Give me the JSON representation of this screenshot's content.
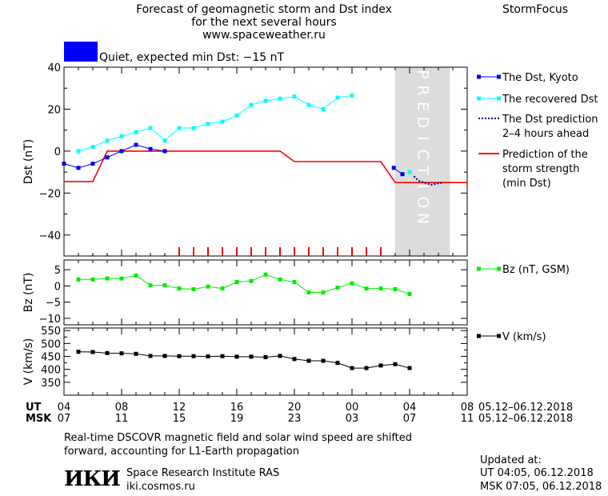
{
  "header": {
    "title_line1": "Forecast of geomagnetic storm and Dst index",
    "title_line2": "for the next several hours",
    "title_line3": "www.spaceweather.ru",
    "brand": "StormFocus"
  },
  "status": {
    "text": "Quiet, expected min Dst: −15 nT",
    "color": "#0000ff"
  },
  "footer": {
    "note_line1": "Real-time DSCOVR magnetic field and solar wind speed are shifted",
    "note_line2": "forward, accounting for L1-Earth propagation",
    "logo": "ИКИ",
    "institute": "Space Research Institute RAS",
    "site": "iki.cosmos.ru",
    "updated_label": "Updated at:",
    "updated_ut": "UT  04:05, 06.12.2018",
    "updated_msk": "MSK 07:05, 06.12.2018"
  },
  "colors": {
    "kyoto": "#0000ee",
    "recovered": "#00ffff",
    "prediction_dotted": "#000090",
    "storm": "#ff0000",
    "bz": "#00ee00",
    "v": "#000000",
    "prediction_band": "#dcdcdc"
  },
  "chart_data": [
    {
      "type": "line",
      "panel": "dst",
      "ylabel": "Dst (nT)",
      "ylim": [
        -50,
        40
      ],
      "yticks": [
        "40",
        "20",
        "0",
        "−20",
        "−40"
      ],
      "ytick_values": [
        40,
        20,
        0,
        -20,
        -40
      ],
      "xlim": [
        4,
        32
      ],
      "prediction_region": [
        27,
        30.8
      ],
      "prediction_label": "PREDICTION",
      "series": [
        {
          "name": "The Dst, Kyoto",
          "x": [
            4,
            5,
            6,
            7,
            8,
            9,
            10,
            11
          ],
          "y": [
            -6,
            -8,
            -6,
            -3,
            0,
            3,
            1,
            0
          ]
        },
        {
          "name": "The recovered Dst",
          "x": [
            5,
            6,
            7,
            8,
            9,
            10,
            11,
            12,
            13,
            14,
            15,
            16,
            17,
            18,
            19,
            20,
            21,
            22,
            23,
            24
          ],
          "y": [
            0,
            2,
            5,
            7,
            9,
            11,
            5,
            11,
            11,
            13,
            14,
            17,
            22,
            24,
            25,
            26,
            22,
            20,
            25.5,
            26.5
          ]
        },
        {
          "name": "The Dst prediction 2–4 hours ahead",
          "x": [
            28.3,
            28.6,
            29.0,
            29.5,
            30.3
          ],
          "y": [
            -12,
            -14,
            -15,
            -16,
            -15
          ]
        },
        {
          "name": "Prediction of the storm strength (min Dst)",
          "x": [
            4,
            6,
            7,
            19,
            20,
            26,
            27,
            32
          ],
          "y": [
            -14.5,
            -14.5,
            0,
            0,
            -5,
            -5,
            -15,
            -15
          ]
        }
      ],
      "extra_points": [
        {
          "x": 26.9,
          "y": -8
        },
        {
          "x": 27.5,
          "y": -11
        }
      ],
      "recovered_extra": [
        {
          "x": 28,
          "y": -10
        }
      ],
      "marker_ticks_x": [
        12,
        13,
        14,
        15,
        16,
        17,
        18,
        19,
        20,
        21,
        22,
        23,
        24,
        25,
        26
      ],
      "legend": [
        {
          "label_lines": [
            "The Dst, Kyoto"
          ]
        },
        {
          "label_lines": [
            "The recovered Dst"
          ]
        },
        {
          "label_lines": [
            "The Dst prediction",
            "2–4 hours ahead"
          ]
        },
        {
          "label_lines": [
            "Prediction of the",
            "storm strength",
            "(min Dst)"
          ]
        }
      ]
    },
    {
      "type": "line",
      "panel": "bz",
      "ylabel": "Bz (nT)",
      "ylim": [
        -12,
        8
      ],
      "yticks": [
        "5",
        "0",
        "−5",
        "−10"
      ],
      "ytick_values": [
        5,
        0,
        -5,
        -10
      ],
      "xlim": [
        4,
        32
      ],
      "series": [
        {
          "name": "Bz (nT, GSM)",
          "x": [
            5,
            6,
            7,
            8,
            9,
            10,
            11,
            12,
            13,
            14,
            15,
            16,
            17,
            18,
            19,
            20,
            21,
            22,
            23,
            24,
            25,
            26,
            27,
            28
          ],
          "y": [
            2,
            2,
            2.3,
            2.3,
            3.2,
            0.2,
            0.2,
            -0.8,
            -1,
            -0.2,
            -0.8,
            1.2,
            1.5,
            3.5,
            2,
            1.2,
            -2,
            -2,
            -0.5,
            0.8,
            -0.8,
            -0.8,
            -1,
            -2.5
          ]
        }
      ]
    },
    {
      "type": "line",
      "panel": "v",
      "ylabel": "V (km/s)",
      "ylim": [
        300,
        560
      ],
      "yticks": [
        "550",
        "500",
        "450",
        "400",
        "350"
      ],
      "ytick_values": [
        550,
        500,
        450,
        400,
        350
      ],
      "yminor": [
        525,
        475,
        425,
        375
      ],
      "xlim": [
        4,
        32
      ],
      "series": [
        {
          "name": "V (km/s)",
          "x": [
            5,
            6,
            7,
            8,
            9,
            10,
            11,
            12,
            13,
            14,
            15,
            16,
            17,
            18,
            19,
            20,
            21,
            22,
            23,
            24,
            25,
            26,
            27,
            28
          ],
          "y": [
            468,
            467,
            463,
            462,
            460,
            452,
            452,
            451,
            451,
            450,
            451,
            449,
            449,
            447,
            452,
            440,
            433,
            433,
            425,
            405,
            405,
            415,
            420,
            405
          ]
        }
      ]
    }
  ],
  "time_axis": {
    "ut_label": "UT",
    "msk_label": "MSK",
    "ut_ticks": [
      "04",
      "08",
      "12",
      "16",
      "20",
      "00",
      "04",
      "08"
    ],
    "msk_ticks": [
      "07",
      "11",
      "15",
      "19",
      "23",
      "03",
      "07",
      "11"
    ],
    "tick_hours": [
      4,
      8,
      12,
      16,
      20,
      24,
      28,
      32
    ],
    "ut_range": "05.12–06.12.2018",
    "msk_range": "05.12–06.12.2018"
  }
}
